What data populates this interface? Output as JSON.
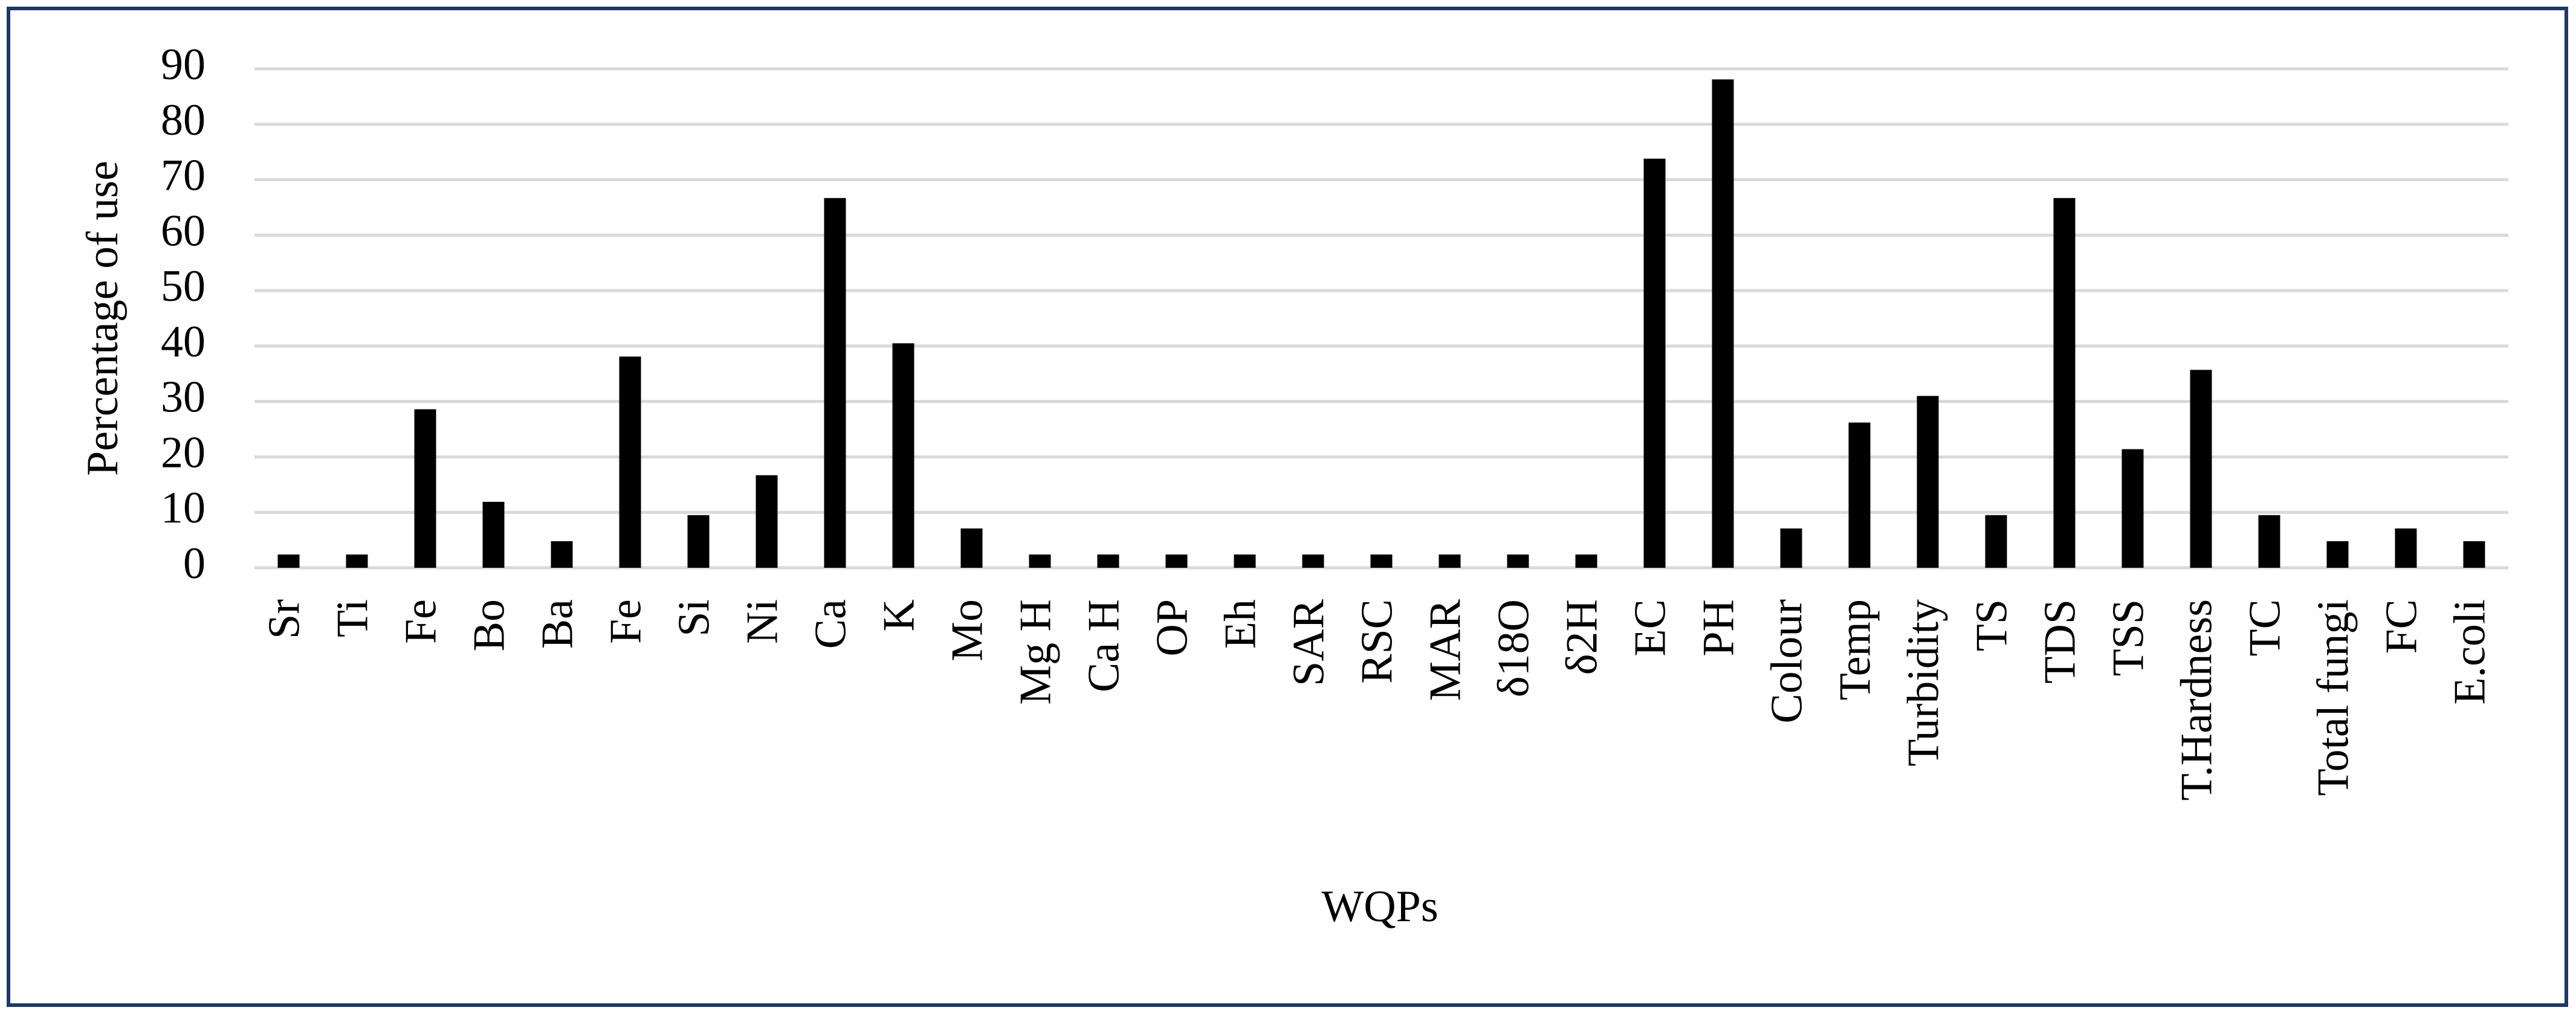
{
  "chart_data": {
    "type": "bar",
    "x_label": "WQPs",
    "y_label": "Percentage of use",
    "categories": [
      "Sr",
      "Ti",
      "Fe",
      "Bo",
      "Ba",
      "Fe",
      "Si",
      "Ni",
      "Ca",
      "K",
      "Mo",
      "Mg H",
      "Ca H",
      "OP",
      "Eh",
      "SAR",
      "RSC",
      "MAR",
      "δ18O",
      "δ2H",
      "EC",
      "PH",
      "Colour",
      "Temp",
      "Turbidity",
      "TS",
      "TDS",
      "TSS",
      "T.Hardness",
      "TC",
      "Total fungi",
      "FC",
      "E.coli"
    ],
    "values": [
      2.4,
      2.4,
      28.6,
      11.9,
      4.8,
      38.1,
      9.5,
      16.7,
      66.7,
      40.5,
      7.1,
      2.4,
      2.4,
      2.4,
      2.4,
      2.4,
      2.4,
      2.4,
      2.4,
      2.4,
      73.8,
      88.1,
      7.1,
      26.2,
      31,
      9.5,
      66.7,
      21.4,
      35.7,
      9.5,
      4.8,
      7.1,
      4.8
    ],
    "color": "#000000",
    "ylim": [
      0,
      90
    ],
    "yticks": [
      0,
      10,
      20,
      30,
      40,
      50,
      60,
      70,
      80,
      90
    ],
    "grid": true
  }
}
